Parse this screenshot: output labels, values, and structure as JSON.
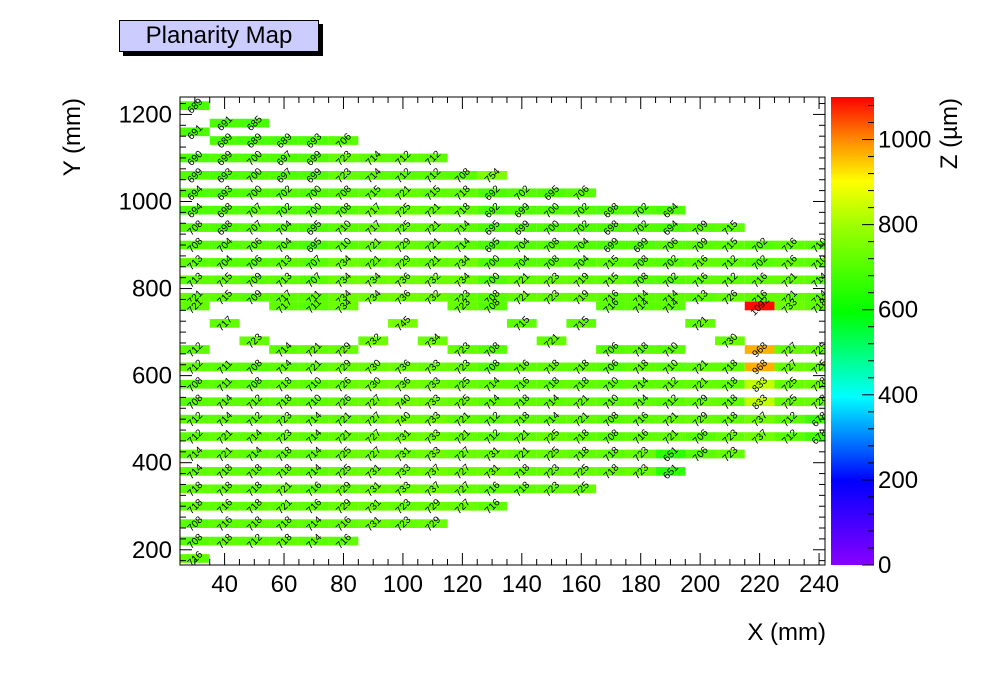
{
  "title": "Planarity Map",
  "chart_data": {
    "type": "heatmap",
    "title": "Planarity Map",
    "xlabel": "X (mm)",
    "ylabel": "Y (mm)",
    "zlabel": "Z (µm)",
    "xlim": [
      25,
      242
    ],
    "ylim": [
      165,
      1240
    ],
    "zlim": [
      0,
      1100
    ],
    "x_ticks": [
      40,
      60,
      80,
      100,
      120,
      140,
      160,
      180,
      200,
      220,
      240
    ],
    "y_ticks": [
      200,
      400,
      600,
      800,
      1000,
      1200
    ],
    "z_ticks": [
      0,
      200,
      400,
      600,
      800,
      1000
    ],
    "x_tick_labels": [
      "40",
      "60",
      "80",
      "100",
      "120",
      "140",
      "160",
      "180",
      "200",
      "220",
      "240"
    ],
    "y_tick_labels": [
      "200",
      "400",
      "600",
      "800",
      "1000",
      "1200"
    ],
    "z_tick_labels": [
      "0",
      "200",
      "400",
      "600",
      "800",
      "1000"
    ],
    "cell_size": [
      10,
      20
    ],
    "grid": false,
    "colormap": "rainbow",
    "rows": [
      {
        "y": 1220,
        "x0": 30,
        "values": [
          689
        ]
      },
      {
        "y": 1180,
        "x0": 40,
        "values": [
          691,
          685
        ]
      },
      {
        "y": 1160,
        "x0": 30,
        "values": [
          691
        ]
      },
      {
        "y": 1140,
        "x0": 40,
        "values": [
          689,
          689,
          689,
          693,
          706
        ]
      },
      {
        "y": 1100,
        "x0": 30,
        "values": [
          690,
          699,
          700,
          697,
          699,
          723,
          714,
          712,
          712
        ]
      },
      {
        "y": 1060,
        "x0": 30,
        "values": [
          699,
          693,
          700,
          697,
          699,
          723,
          714,
          712,
          712,
          708,
          754
        ]
      },
      {
        "y": 1020,
        "x0": 30,
        "values": [
          694,
          693,
          700,
          702,
          700,
          708,
          715,
          721,
          715,
          718,
          692,
          702,
          695,
          706
        ]
      },
      {
        "y": 980,
        "x0": 30,
        "values": [
          694,
          698,
          707,
          702,
          700,
          708,
          717,
          725,
          721,
          718,
          692,
          699,
          700,
          702,
          698,
          702,
          694
        ]
      },
      {
        "y": 940,
        "x0": 30,
        "values": [
          708,
          698,
          707,
          704,
          695,
          710,
          717,
          725,
          721,
          714,
          695,
          699,
          700,
          702,
          698,
          702,
          694,
          709,
          715
        ]
      },
      {
        "y": 900,
        "x0": 30,
        "values": [
          708,
          704,
          706,
          704,
          695,
          710,
          721,
          729,
          721,
          714,
          695,
          704,
          708,
          704,
          699,
          699,
          706,
          709,
          715,
          702,
          716,
          710
        ]
      },
      {
        "y": 860,
        "x0": 30,
        "values": [
          713,
          704,
          706,
          713,
          707,
          734,
          721,
          729,
          721,
          734,
          700,
          704,
          708,
          704,
          715,
          708,
          702,
          716,
          712,
          702,
          716,
          710,
          721,
          725
        ]
      },
      {
        "y": 820,
        "x0": 30,
        "values": [
          713,
          715,
          709,
          713,
          707,
          734,
          734,
          736,
          732,
          734,
          700,
          721,
          723,
          719,
          715,
          708,
          702,
          716,
          712,
          716,
          721,
          714,
          721,
          725
        ]
      },
      {
        "y": 780,
        "x0": 30,
        "values": [
          721,
          715,
          709,
          717,
          711,
          734,
          734,
          736,
          732,
          723,
          708,
          721,
          723,
          719,
          716,
          714,
          714,
          713,
          726,
          716,
          721,
          714,
          721,
          728
        ]
      },
      {
        "y": 760,
        "x0": 30,
        "values": [
          721,
          null,
          null,
          717,
          711,
          734,
          null,
          null,
          null,
          723,
          708,
          null,
          null,
          null,
          716,
          714,
          714,
          null,
          null,
          1092,
          733,
          718,
          721,
          728
        ]
      },
      {
        "y": 720,
        "x0": 30,
        "values": [
          null,
          717,
          null,
          null,
          null,
          null,
          null,
          745,
          null,
          null,
          null,
          715,
          null,
          715,
          null,
          null,
          null,
          721,
          null,
          null,
          null,
          null,
          null,
          732
        ]
      },
      {
        "y": 680,
        "x0": 30,
        "values": [
          null,
          null,
          723,
          null,
          null,
          null,
          732,
          null,
          734,
          null,
          null,
          null,
          721,
          null,
          null,
          null,
          null,
          null,
          730,
          null,
          null,
          null,
          713,
          null
        ]
      },
      {
        "y": 660,
        "x0": 30,
        "values": [
          712,
          null,
          null,
          714,
          721,
          729,
          null,
          null,
          null,
          723,
          708,
          null,
          null,
          null,
          706,
          718,
          710,
          null,
          null,
          968,
          727,
          725,
          725,
          null
        ]
      },
      {
        "y": 620,
        "x0": 30,
        "values": [
          712,
          711,
          708,
          714,
          721,
          729,
          730,
          736,
          733,
          723,
          708,
          716,
          718,
          718,
          706,
          718,
          710,
          721,
          718,
          968,
          727,
          725,
          725,
          725
        ]
      },
      {
        "y": 580,
        "x0": 30,
        "values": [
          708,
          711,
          708,
          718,
          710,
          726,
          730,
          736,
          733,
          725,
          714,
          716,
          718,
          718,
          710,
          714,
          712,
          721,
          718,
          833,
          725,
          728,
          725,
          725
        ]
      },
      {
        "y": 540,
        "x0": 30,
        "values": [
          708,
          714,
          712,
          718,
          710,
          726,
          727,
          740,
          733,
          725,
          714,
          718,
          714,
          721,
          710,
          714,
          712,
          729,
          718,
          833,
          725,
          728,
          729,
          690
        ]
      },
      {
        "y": 500,
        "x0": 30,
        "values": [
          712,
          714,
          712,
          723,
          714,
          721,
          727,
          740,
          733,
          721,
          712,
          718,
          714,
          721,
          708,
          716,
          721,
          729,
          718,
          737,
          712,
          678,
          729,
          690
        ]
      },
      {
        "y": 460,
        "x0": 30,
        "values": [
          712,
          721,
          714,
          723,
          714,
          721,
          727,
          731,
          733,
          721,
          712,
          721,
          725,
          718,
          708,
          716,
          721,
          706,
          723,
          737,
          712,
          678
        ]
      },
      {
        "y": 420,
        "x0": 30,
        "values": [
          714,
          721,
          714,
          718,
          714,
          725,
          727,
          731,
          733,
          727,
          731,
          721,
          725,
          718,
          718,
          723,
          651,
          706,
          723
        ]
      },
      {
        "y": 380,
        "x0": 30,
        "values": [
          714,
          718,
          718,
          718,
          714,
          725,
          731,
          733,
          737,
          727,
          731,
          718,
          723,
          725,
          718,
          723,
          651
        ]
      },
      {
        "y": 340,
        "x0": 30,
        "values": [
          718,
          718,
          718,
          721,
          716,
          729,
          731,
          733,
          737,
          727,
          716,
          718,
          723,
          725
        ]
      },
      {
        "y": 300,
        "x0": 30,
        "values": [
          718,
          716,
          718,
          721,
          716,
          729,
          731,
          723,
          729,
          727,
          716
        ]
      },
      {
        "y": 260,
        "x0": 30,
        "values": [
          708,
          716,
          718,
          718,
          714,
          716,
          731,
          723,
          729
        ]
      },
      {
        "y": 220,
        "x0": 30,
        "values": [
          708,
          718,
          712,
          718,
          714,
          716
        ]
      },
      {
        "y": 180,
        "x0": 30,
        "values": [
          716
        ]
      }
    ],
    "palette": {
      "background": "#ffffff",
      "frame": "#000000",
      "title_box": "#ccccff"
    }
  }
}
